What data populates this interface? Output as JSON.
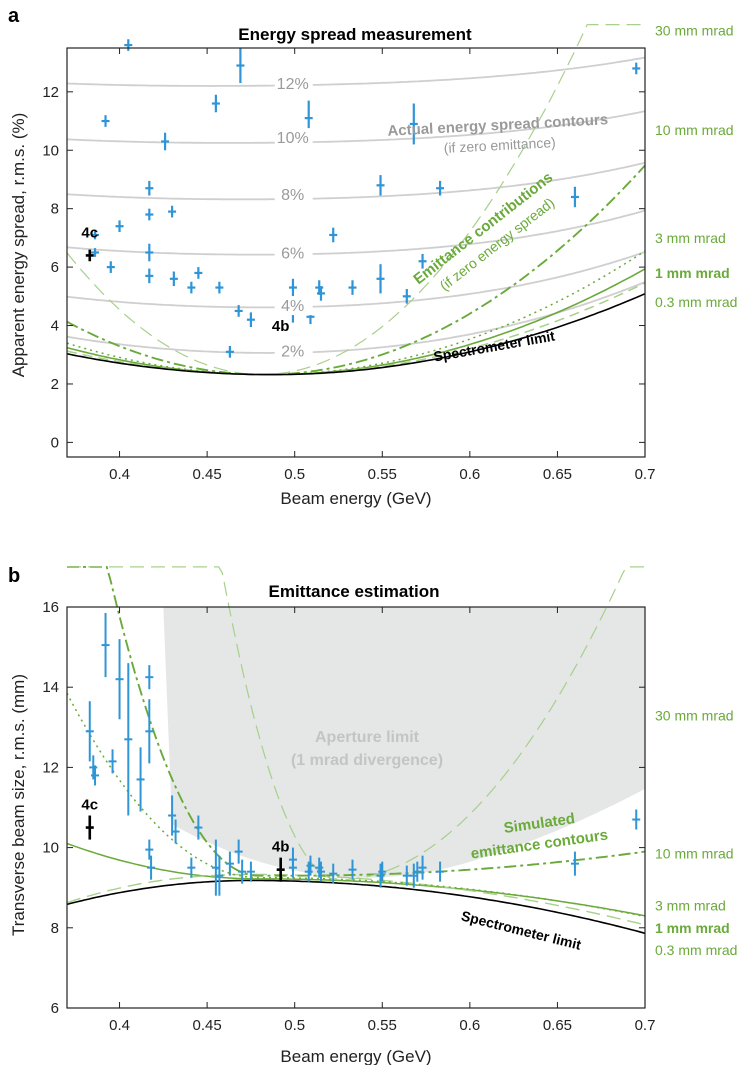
{
  "chart_data": [
    {
      "panel_label": "a",
      "type": "scatter",
      "title": "Energy spread measurement",
      "xlabel": "Beam energy (GeV)",
      "ylabel": "Apparent energy spread, r.m.s. (%)",
      "xlim": [
        0.37,
        0.7
      ],
      "ylim": [
        -0.5,
        13.5
      ],
      "xticks": [
        0.4,
        0.45,
        0.5,
        0.55,
        0.6,
        0.65,
        0.7
      ],
      "xtick_labels": [
        "0.4",
        "0.45",
        "0.5",
        "0.55",
        "0.6",
        "0.65",
        "0.7"
      ],
      "yticks": [
        0,
        2,
        4,
        6,
        8,
        10,
        12
      ],
      "ytick_labels": [
        "0",
        "2",
        "4",
        "6",
        "8",
        "10",
        "12"
      ],
      "contour_levels": [
        {
          "label": "2%",
          "pos": [
            0.5,
            3.15
          ]
        },
        {
          "label": "4%",
          "pos": [
            0.5,
            4.7
          ]
        },
        {
          "label": "6%",
          "pos": [
            0.5,
            6.5
          ]
        },
        {
          "label": "8%",
          "pos": [
            0.5,
            8.5
          ]
        },
        {
          "label": "10%",
          "pos": [
            0.5,
            10.45
          ]
        },
        {
          "label": "12%",
          "pos": [
            0.5,
            12.3
          ]
        }
      ],
      "contour_label": "Actual energy spread contours",
      "contour_sublabel": "(if zero emittance)",
      "emittance_label": "Emittance contributions",
      "emittance_sublabel": "(if zero energy spread)",
      "limit_label": "Spectrometer limit",
      "right_labels": [
        {
          "text": "30 mm mrad",
          "y": 14.1,
          "bold": false
        },
        {
          "text": "10 mm mrad",
          "y": 10.7,
          "bold": false
        },
        {
          "text": "3 mm mrad",
          "y": 7.0,
          "bold": false
        },
        {
          "text": "1 mm mrad",
          "y": 5.8,
          "bold": true
        },
        {
          "text": "0.3 mm mrad",
          "y": 4.8,
          "bold": false
        }
      ],
      "points": [
        {
          "x": 0.405,
          "y": 13.6,
          "yerr": 0.2
        },
        {
          "x": 0.392,
          "y": 11.0,
          "yerr": 0.2
        },
        {
          "x": 0.4,
          "y": 7.4,
          "yerr": 0.2
        },
        {
          "x": 0.386,
          "y": 7.1,
          "yerr": 0.15
        },
        {
          "x": 0.386,
          "y": 6.5,
          "yerr": 0.15
        },
        {
          "x": 0.395,
          "y": 6.0,
          "yerr": 0.2
        },
        {
          "x": 0.417,
          "y": 8.7,
          "yerr": 0.25
        },
        {
          "x": 0.417,
          "y": 7.8,
          "yerr": 0.2
        },
        {
          "x": 0.417,
          "y": 6.5,
          "yerr": 0.3
        },
        {
          "x": 0.417,
          "y": 5.7,
          "yerr": 0.25
        },
        {
          "x": 0.426,
          "y": 10.3,
          "yerr": 0.3
        },
        {
          "x": 0.43,
          "y": 7.9,
          "yerr": 0.2
        },
        {
          "x": 0.431,
          "y": 5.6,
          "yerr": 0.25
        },
        {
          "x": 0.441,
          "y": 5.3,
          "yerr": 0.2
        },
        {
          "x": 0.445,
          "y": 5.8,
          "yerr": 0.2
        },
        {
          "x": 0.455,
          "y": 11.6,
          "yerr": 0.3
        },
        {
          "x": 0.457,
          "y": 5.3,
          "yerr": 0.2
        },
        {
          "x": 0.463,
          "y": 3.1,
          "yerr": 0.2
        },
        {
          "x": 0.468,
          "y": 4.5,
          "yerr": 0.2
        },
        {
          "x": 0.469,
          "y": 12.9,
          "yerr": 0.6
        },
        {
          "x": 0.475,
          "y": 4.2,
          "yerr": 0.25
        },
        {
          "x": 0.499,
          "y": 5.3,
          "yerr": 0.3
        },
        {
          "x": 0.499,
          "y": 4.4,
          "yerr": 0.3
        },
        {
          "x": 0.508,
          "y": 11.1,
          "yerr": 0.6
        },
        {
          "x": 0.509,
          "y": 4.3,
          "yerr": 0.25
        },
        {
          "x": 0.514,
          "y": 5.3,
          "yerr": 0.25
        },
        {
          "x": 0.515,
          "y": 5.1,
          "yerr": 0.25
        },
        {
          "x": 0.522,
          "y": 7.1,
          "yerr": 0.25
        },
        {
          "x": 0.533,
          "y": 5.3,
          "yerr": 0.25
        },
        {
          "x": 0.549,
          "y": 8.8,
          "yerr": 0.35
        },
        {
          "x": 0.549,
          "y": 5.6,
          "yerr": 0.5
        },
        {
          "x": 0.568,
          "y": 10.9,
          "yerr": 0.7
        },
        {
          "x": 0.564,
          "y": 5.0,
          "yerr": 0.25
        },
        {
          "x": 0.573,
          "y": 6.2,
          "yerr": 0.25
        },
        {
          "x": 0.583,
          "y": 8.7,
          "yerr": 0.25
        },
        {
          "x": 0.66,
          "y": 8.4,
          "yerr": 0.35
        },
        {
          "x": 0.695,
          "y": 12.8,
          "yerr": 0.2
        }
      ],
      "highlighted": [
        {
          "label": "4c",
          "x": 0.383,
          "y": 6.4,
          "yerr": 0.2
        },
        {
          "label": "4b",
          "x": 0.492,
          "y": 3.2,
          "yerr": 0.2
        }
      ]
    },
    {
      "panel_label": "b",
      "type": "scatter",
      "title": "Emittance estimation",
      "xlabel": "Beam energy (GeV)",
      "ylabel": "Transverse beam size, r.m.s. (mm)",
      "xlim": [
        0.37,
        0.7
      ],
      "ylim": [
        6,
        16
      ],
      "xticks": [
        0.4,
        0.45,
        0.5,
        0.55,
        0.6,
        0.65,
        0.7
      ],
      "xtick_labels": [
        "0.4",
        "0.45",
        "0.5",
        "0.55",
        "0.6",
        "0.65",
        "0.7"
      ],
      "yticks": [
        6,
        8,
        10,
        12,
        14,
        16
      ],
      "ytick_labels": [
        "6",
        "8",
        "10",
        "12",
        "14",
        "16"
      ],
      "aperture_label": "Aperture limit",
      "aperture_sublabel": "(1 mrad divergence)",
      "simulated_label": "Simulated",
      "simulated_sublabel": "emittance contours",
      "limit_label": "Spectrometer limit",
      "right_labels": [
        {
          "text": "30 mm mrad",
          "y": 13.3,
          "bold": false
        },
        {
          "text": "10 mm mrad",
          "y": 9.85,
          "bold": false
        },
        {
          "text": "3 mm mrad",
          "y": 8.55,
          "bold": false
        },
        {
          "text": "1 mm mrad",
          "y": 8.0,
          "bold": true
        },
        {
          "text": "0.3 mm mrad",
          "y": 7.45,
          "bold": false
        }
      ],
      "points": [
        {
          "x": 0.383,
          "y": 12.9,
          "yerr": 0.75
        },
        {
          "x": 0.385,
          "y": 12.0,
          "yerr": 0.3
        },
        {
          "x": 0.386,
          "y": 11.8,
          "yerr": 0.25
        },
        {
          "x": 0.392,
          "y": 15.05,
          "yerr": 0.8
        },
        {
          "x": 0.396,
          "y": 12.15,
          "yerr": 0.3
        },
        {
          "x": 0.4,
          "y": 14.2,
          "yerr": 1.0
        },
        {
          "x": 0.405,
          "y": 12.7,
          "yerr": 1.9
        },
        {
          "x": 0.412,
          "y": 11.7,
          "yerr": 0.8
        },
        {
          "x": 0.417,
          "y": 14.25,
          "yerr": 0.3
        },
        {
          "x": 0.417,
          "y": 12.9,
          "yerr": 0.8
        },
        {
          "x": 0.417,
          "y": 9.95,
          "yerr": 0.25
        },
        {
          "x": 0.418,
          "y": 9.5,
          "yerr": 0.3
        },
        {
          "x": 0.43,
          "y": 10.8,
          "yerr": 0.5
        },
        {
          "x": 0.432,
          "y": 10.4,
          "yerr": 0.3
        },
        {
          "x": 0.441,
          "y": 9.5,
          "yerr": 0.25
        },
        {
          "x": 0.445,
          "y": 10.5,
          "yerr": 0.3
        },
        {
          "x": 0.455,
          "y": 9.5,
          "yerr": 0.7
        },
        {
          "x": 0.457,
          "y": 9.3,
          "yerr": 0.5
        },
        {
          "x": 0.463,
          "y": 9.6,
          "yerr": 0.3
        },
        {
          "x": 0.468,
          "y": 9.9,
          "yerr": 0.3
        },
        {
          "x": 0.47,
          "y": 9.4,
          "yerr": 0.3
        },
        {
          "x": 0.475,
          "y": 9.4,
          "yerr": 0.25
        },
        {
          "x": 0.499,
          "y": 9.7,
          "yerr": 0.3
        },
        {
          "x": 0.499,
          "y": 9.5,
          "yerr": 0.25
        },
        {
          "x": 0.508,
          "y": 9.4,
          "yerr": 0.25
        },
        {
          "x": 0.509,
          "y": 9.55,
          "yerr": 0.25
        },
        {
          "x": 0.514,
          "y": 9.5,
          "yerr": 0.25
        },
        {
          "x": 0.515,
          "y": 9.4,
          "yerr": 0.25
        },
        {
          "x": 0.522,
          "y": 9.35,
          "yerr": 0.25
        },
        {
          "x": 0.533,
          "y": 9.45,
          "yerr": 0.25
        },
        {
          "x": 0.549,
          "y": 9.3,
          "yerr": 0.3
        },
        {
          "x": 0.55,
          "y": 9.4,
          "yerr": 0.25
        },
        {
          "x": 0.564,
          "y": 9.3,
          "yerr": 0.25
        },
        {
          "x": 0.568,
          "y": 9.3,
          "yerr": 0.3
        },
        {
          "x": 0.57,
          "y": 9.4,
          "yerr": 0.25
        },
        {
          "x": 0.573,
          "y": 9.5,
          "yerr": 0.3
        },
        {
          "x": 0.583,
          "y": 9.4,
          "yerr": 0.25
        },
        {
          "x": 0.66,
          "y": 9.6,
          "yerr": 0.3
        },
        {
          "x": 0.695,
          "y": 10.7,
          "yerr": 0.25
        }
      ],
      "highlighted": [
        {
          "label": "4c",
          "x": 0.383,
          "y": 10.5,
          "yerr": 0.3
        },
        {
          "label": "4b",
          "x": 0.492,
          "y": 9.45,
          "yerr": 0.3
        }
      ]
    }
  ]
}
